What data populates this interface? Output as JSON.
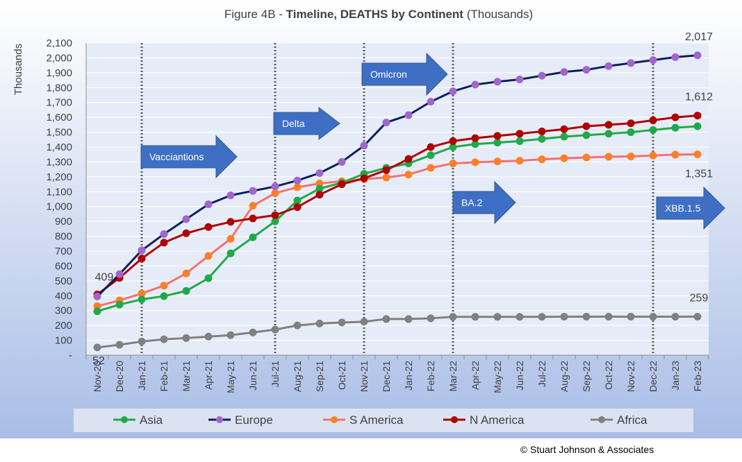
{
  "title": {
    "prefix": "Figure 4B - ",
    "bold": "Timeline, DEATHS by Continent",
    "suffix": " (Thousands)"
  },
  "copyright": "© Stuart Johnson & Associates",
  "colors": {
    "bg_top": "#ffffff",
    "bg_bottom": "#a9bde6",
    "plot_bg": "#e6ecf7",
    "grid": "#ffffff",
    "arrow_fill": "#3f6fc4",
    "arrow_stroke": "#2f5597"
  },
  "chart_data": {
    "type": "line",
    "ylabel": "Thousands",
    "ylim": [
      0,
      2100
    ],
    "yticks": [
      "-",
      "100",
      "200",
      "300",
      "400",
      "500",
      "600",
      "700",
      "800",
      "900",
      "1,000",
      "1,100",
      "1,200",
      "1,300",
      "1,400",
      "1,500",
      "1,600",
      "1,700",
      "1,800",
      "1,900",
      "2,000",
      "2,100"
    ],
    "categories": [
      "Nov-20",
      "Dec-20",
      "Jan-21",
      "Feb-21",
      "Mar-21",
      "Apr-21",
      "May-21",
      "Jun-21",
      "Jul-21",
      "Aug-21",
      "Sep-21",
      "Oct-21",
      "Nov-21",
      "Dec-21",
      "Jan-22",
      "Feb-22",
      "Mar-22",
      "Apr-22",
      "May-22",
      "Jun-22",
      "Jul-22",
      "Aug-22",
      "Sep-22",
      "Oct-22",
      "Nov-22",
      "Dec-22",
      "Jan-23",
      "Feb-23"
    ],
    "series": [
      {
        "name": "Europe",
        "line_color": "#0d1f5c",
        "marker_color": "#a066cc",
        "values": [
          395,
          545,
          705,
          815,
          915,
          1015,
          1075,
          1105,
          1135,
          1175,
          1225,
          1300,
          1410,
          1565,
          1615,
          1705,
          1775,
          1820,
          1840,
          1855,
          1880,
          1905,
          1920,
          1945,
          1965,
          1985,
          2005,
          2017
        ]
      },
      {
        "name": "N America",
        "line_color": "#b00000",
        "marker_color": "#b00000",
        "values": [
          409,
          520,
          650,
          757,
          820,
          862,
          897,
          920,
          942,
          996,
          1080,
          1150,
          1190,
          1245,
          1320,
          1400,
          1440,
          1460,
          1475,
          1490,
          1505,
          1520,
          1540,
          1550,
          1560,
          1580,
          1600,
          1612
        ]
      },
      {
        "name": "Asia",
        "line_color": "#22a84a",
        "marker_color": "#22a84a",
        "values": [
          295,
          340,
          375,
          397,
          432,
          518,
          685,
          793,
          900,
          1040,
          1120,
          1160,
          1220,
          1260,
          1290,
          1345,
          1400,
          1420,
          1430,
          1440,
          1455,
          1470,
          1480,
          1490,
          1500,
          1515,
          1530,
          1540
        ]
      },
      {
        "name": "S America",
        "line_color": "#f47070",
        "marker_color": "#ff7f27",
        "values": [
          330,
          368,
          415,
          468,
          550,
          668,
          783,
          1005,
          1090,
          1130,
          1155,
          1170,
          1185,
          1195,
          1215,
          1260,
          1290,
          1298,
          1303,
          1308,
          1318,
          1325,
          1330,
          1335,
          1337,
          1343,
          1349,
          1351
        ]
      },
      {
        "name": "Africa",
        "line_color": "#808080",
        "marker_color": "#808080",
        "values": [
          52,
          70,
          92,
          107,
          115,
          125,
          135,
          153,
          172,
          200,
          213,
          220,
          225,
          243,
          243,
          248,
          258,
          258,
          258,
          258,
          258,
          259,
          259,
          259,
          259,
          259,
          259,
          259
        ]
      }
    ],
    "legend_order": [
      "Asia",
      "Europe",
      "S America",
      "N America",
      "Africa"
    ],
    "legend_placement": "bottom",
    "data_labels": [
      {
        "text": "409",
        "series": "N America",
        "index": 0
      },
      {
        "text": "52",
        "series": "Africa",
        "index": 0
      },
      {
        "text": "2,017",
        "series": "Europe",
        "index": 27
      },
      {
        "text": "1,612",
        "series": "N America",
        "index": 27
      },
      {
        "text": "1,351",
        "series": "S America",
        "index": 27
      },
      {
        "text": "259",
        "series": "Africa",
        "index": 27
      }
    ],
    "events": [
      {
        "text": "Vacciantions",
        "at": "Jan-21"
      },
      {
        "text": "Delta",
        "at": "Jul-21"
      },
      {
        "text": "Omicron",
        "at": "Nov-21"
      },
      {
        "text": "BA.2",
        "at": "Mar-22"
      },
      {
        "text": "XBB.1.5",
        "at": "Dec-22"
      }
    ],
    "grid": true
  }
}
